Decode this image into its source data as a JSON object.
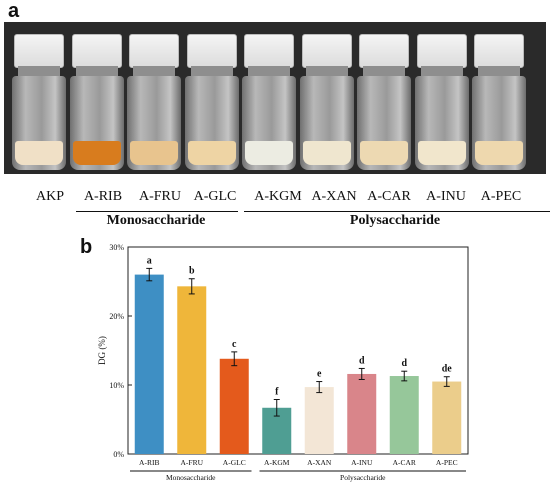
{
  "panel_a": {
    "label": "a",
    "vials": [
      {
        "label": "AKP",
        "powder_color": "#f0e0c6"
      },
      {
        "label": "A-RIB",
        "powder_color": "#d87c1e"
      },
      {
        "label": "A-FRU",
        "powder_color": "#e8c48e"
      },
      {
        "label": "A-GLC",
        "powder_color": "#eed4a4"
      },
      {
        "label": "A-KGM",
        "powder_color": "#ecece2"
      },
      {
        "label": "A-XAN",
        "powder_color": "#efe6cf"
      },
      {
        "label": "A-CAR",
        "powder_color": "#edd9b2"
      },
      {
        "label": "A-INU",
        "powder_color": "#f1e6cc"
      },
      {
        "label": "A-PEC",
        "powder_color": "#eed8ae"
      }
    ],
    "groups": [
      {
        "label": "Monosaccharide"
      },
      {
        "label": "Polysaccharide"
      }
    ]
  },
  "panel_b": {
    "label": "b"
  },
  "chart_data": {
    "type": "bar",
    "title": "",
    "ylabel": "DG (%)",
    "xlabel": "",
    "ylim": [
      0,
      30
    ],
    "yticks": [
      "0%",
      "10%",
      "20%",
      "30%"
    ],
    "categories": [
      "A-RIB",
      "A-FRU",
      "A-GLC",
      "A-KGM",
      "A-XAN",
      "A-INU",
      "A-CAR",
      "A-PEC"
    ],
    "values": [
      26.0,
      24.3,
      13.8,
      6.7,
      9.7,
      11.6,
      11.3,
      10.5
    ],
    "errors": [
      0.9,
      1.1,
      1.0,
      1.2,
      0.8,
      0.8,
      0.7,
      0.7
    ],
    "significance": [
      "a",
      "b",
      "c",
      "f",
      "e",
      "d",
      "d",
      "de"
    ],
    "colors": [
      "#3e8fc4",
      "#efb63a",
      "#e45a1c",
      "#4f9e93",
      "#f3e6d6",
      "#d9858a",
      "#96c79a",
      "#ebcd8b"
    ],
    "groups": [
      {
        "label": "Monosaccharide"
      },
      {
        "label": "Polysaccharide"
      }
    ],
    "grid": false,
    "legend": "none"
  }
}
